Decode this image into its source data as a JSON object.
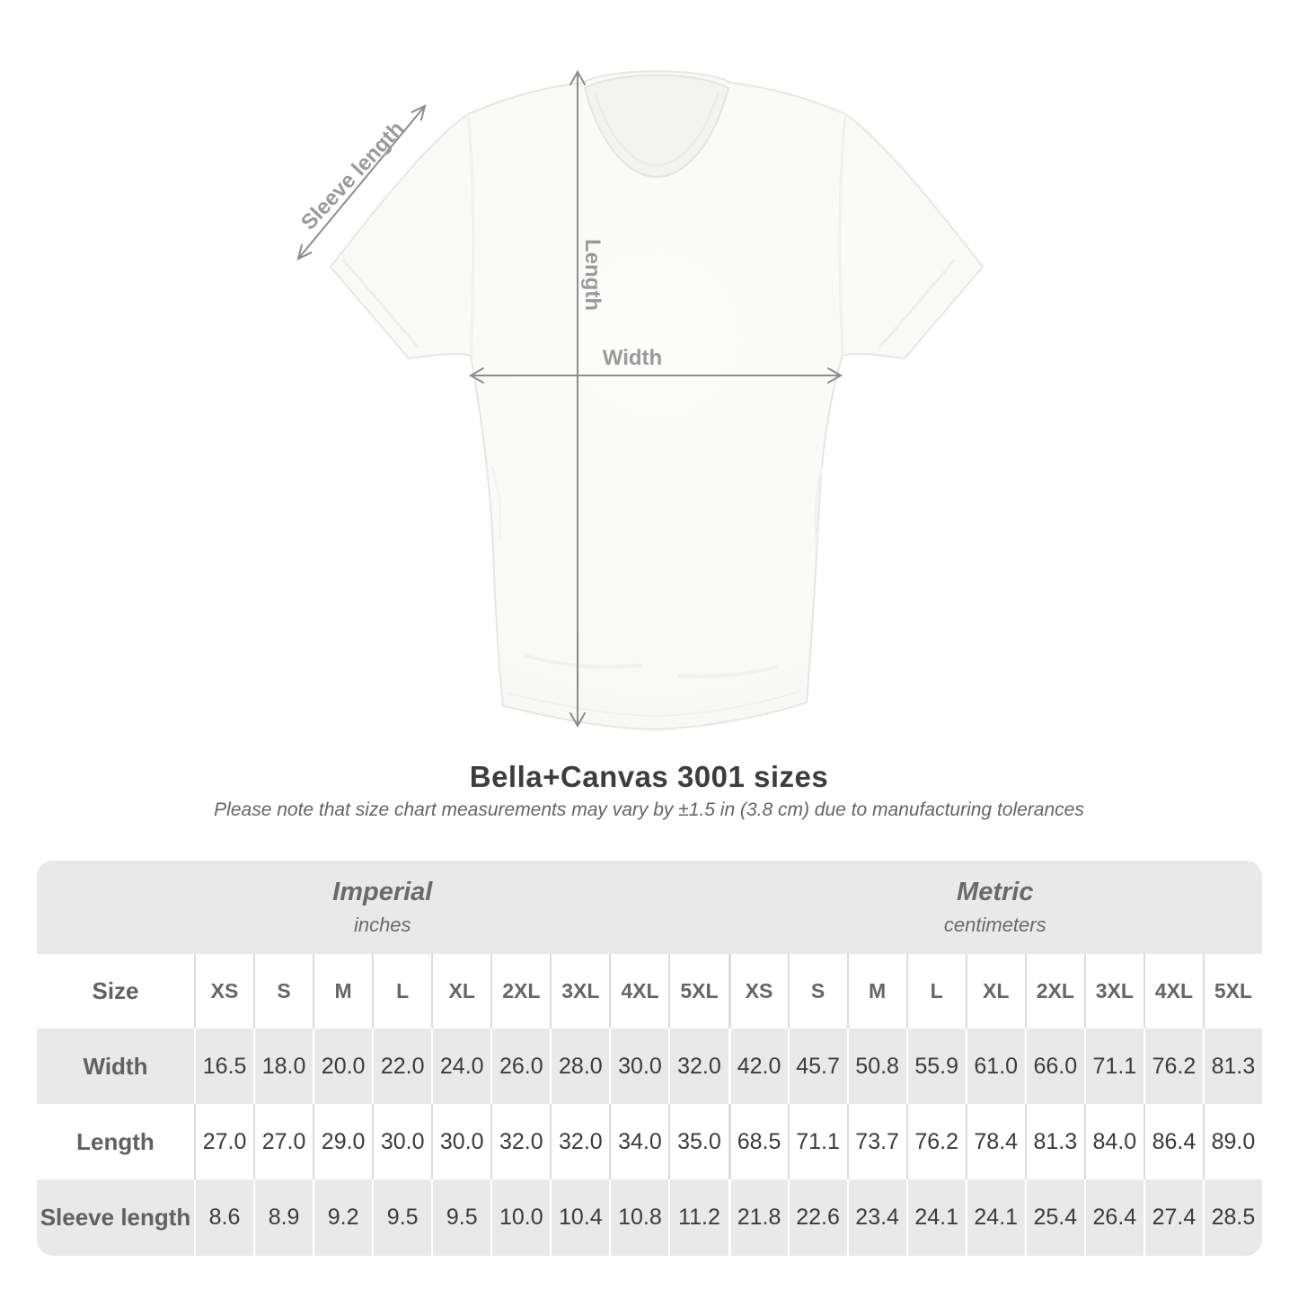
{
  "diagram": {
    "sleeve_label": "Sleeve length",
    "length_label": "Length",
    "width_label": "Width"
  },
  "header": {
    "title": "Bella+Canvas 3001 sizes",
    "subtitle": "Please note that size chart measurements may vary by ±1.5 in (3.8 cm) due to manufacturing tolerances"
  },
  "chart_data": {
    "type": "table",
    "title": "Bella+Canvas 3001 sizes",
    "groups": [
      {
        "label": "Imperial",
        "unit": "inches"
      },
      {
        "label": "Metric",
        "unit": "centimeters"
      }
    ],
    "size_header_label": "Size",
    "sizes": [
      "XS",
      "S",
      "M",
      "L",
      "XL",
      "2XL",
      "3XL",
      "4XL",
      "5XL"
    ],
    "rows": [
      {
        "label": "Width",
        "imperial": [
          "16.5",
          "18.0",
          "20.0",
          "22.0",
          "24.0",
          "26.0",
          "28.0",
          "30.0",
          "32.0"
        ],
        "metric": [
          "42.0",
          "45.7",
          "50.8",
          "55.9",
          "61.0",
          "66.0",
          "71.1",
          "76.2",
          "81.3"
        ]
      },
      {
        "label": "Length",
        "imperial": [
          "27.0",
          "27.0",
          "29.0",
          "30.0",
          "30.0",
          "32.0",
          "32.0",
          "34.0",
          "35.0"
        ],
        "metric": [
          "68.5",
          "71.1",
          "73.7",
          "76.2",
          "78.4",
          "81.3",
          "84.0",
          "86.4",
          "89.0"
        ]
      },
      {
        "label": "Sleeve length",
        "imperial": [
          "8.6",
          "8.9",
          "9.2",
          "9.5",
          "9.5",
          "10.0",
          "10.4",
          "10.8",
          "11.2"
        ],
        "metric": [
          "21.8",
          "22.6",
          "23.4",
          "24.1",
          "24.1",
          "25.4",
          "26.4",
          "27.4",
          "28.5"
        ]
      }
    ]
  },
  "colors": {
    "band_gray": "#e9e9e9",
    "arrow_gray": "#8c8c8c",
    "diagram_label_gray": "#9a9a9a",
    "title_text": "#3d3d3d",
    "value_text": "#3b3b3b"
  }
}
